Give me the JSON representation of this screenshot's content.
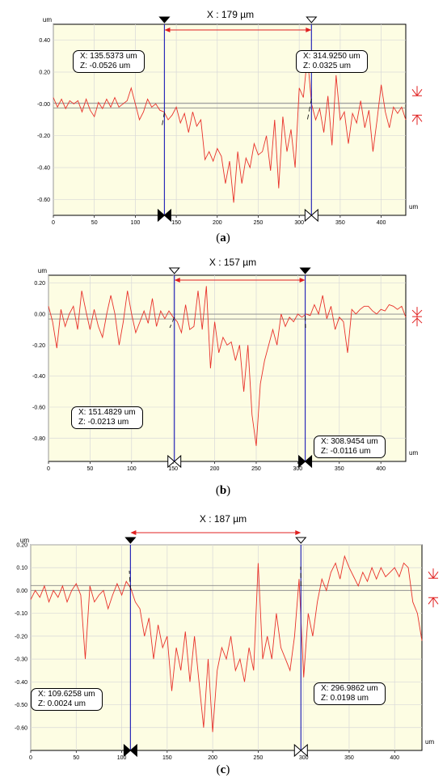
{
  "chart_data": [
    {
      "type": "line",
      "label": "(a)",
      "caption_letter": "a",
      "measure_label": "X : 179 µm",
      "y_unit": "um",
      "x_unit": "um",
      "xlim": [
        0,
        430
      ],
      "ylim": [
        -0.7,
        0.5
      ],
      "x_ticks": [
        0,
        50,
        100,
        150,
        200,
        250,
        300,
        350,
        400
      ],
      "y_ticks": [
        "0.40",
        "0.20",
        "-0.00",
        "-0.20",
        "-0.40",
        "-0.60"
      ],
      "y_tick_values": [
        0.4,
        0.2,
        0.0,
        -0.2,
        -0.4,
        -0.6
      ],
      "cursors": [
        {
          "x": 135.5373,
          "z": -0.0526,
          "x_text": "X: 135.5373 um",
          "z_text": "Z: -0.0526 um"
        },
        {
          "x": 314.925,
          "z": 0.0325,
          "x_text": "X: 314.9250 um",
          "z_text": "Z: 0.0325 um"
        }
      ],
      "series": [
        {
          "x": [
            0,
            5,
            10,
            15,
            20,
            25,
            30,
            35,
            40,
            45,
            50,
            55,
            60,
            65,
            70,
            75,
            80,
            85,
            90,
            95,
            100,
            105,
            110,
            115,
            120,
            125,
            130,
            135,
            140,
            145,
            150,
            155,
            160,
            165,
            170,
            175,
            180,
            185,
            190,
            195,
            200,
            205,
            210,
            215,
            220,
            225,
            230,
            235,
            240,
            245,
            250,
            255,
            260,
            265,
            270,
            275,
            280,
            285,
            290,
            295,
            300,
            305,
            310,
            315,
            320,
            325,
            330,
            335,
            340,
            345,
            350,
            355,
            360,
            365,
            370,
            375,
            380,
            385,
            390,
            395,
            400,
            405,
            410,
            415,
            420,
            425,
            430
          ],
          "y": [
            0.04,
            -0.02,
            0.03,
            -0.03,
            0.02,
            0.0,
            0.02,
            -0.05,
            0.03,
            -0.04,
            -0.08,
            0.01,
            -0.03,
            0.03,
            -0.02,
            0.04,
            -0.02,
            0.0,
            0.02,
            0.1,
            0.0,
            -0.1,
            -0.05,
            0.03,
            -0.02,
            0.0,
            -0.04,
            -0.05,
            -0.1,
            -0.07,
            -0.02,
            -0.12,
            -0.06,
            -0.18,
            -0.05,
            -0.14,
            -0.1,
            -0.35,
            -0.3,
            -0.36,
            -0.28,
            -0.33,
            -0.5,
            -0.36,
            -0.62,
            -0.3,
            -0.5,
            -0.34,
            -0.4,
            -0.25,
            -0.32,
            -0.3,
            -0.2,
            -0.42,
            -0.1,
            -0.53,
            -0.08,
            -0.3,
            -0.16,
            -0.4,
            0.1,
            0.04,
            0.3,
            0.0,
            -0.1,
            -0.03,
            -0.18,
            0.05,
            -0.26,
            0.18,
            -0.1,
            -0.05,
            -0.25,
            -0.06,
            -0.12,
            0.02,
            -0.15,
            -0.04,
            -0.3,
            -0.1,
            0.12,
            -0.05,
            -0.15,
            -0.02,
            -0.06,
            -0.02,
            -0.1
          ]
        }
      ]
    },
    {
      "type": "line",
      "label": "(b)",
      "caption_letter": "b",
      "measure_label": "X : 157 µm",
      "y_unit": "um",
      "x_unit": "um",
      "xlim": [
        0,
        430
      ],
      "ylim": [
        -0.95,
        0.25
      ],
      "x_ticks": [
        0,
        50,
        100,
        150,
        200,
        250,
        300,
        350,
        400
      ],
      "y_ticks": [
        "0.20",
        "0.00",
        "-0.20",
        "-0.40",
        "-0.60",
        "-0.80"
      ],
      "y_tick_values": [
        0.2,
        0.0,
        -0.2,
        -0.4,
        -0.6,
        -0.8
      ],
      "cursors": [
        {
          "x": 151.4829,
          "z": -0.0213,
          "x_text": "X: 151.4829 um",
          "z_text": "Z: -0.0213 um"
        },
        {
          "x": 308.9454,
          "z": -0.0116,
          "x_text": "X: 308.9454 um",
          "z_text": "Z: -0.0116 um"
        }
      ],
      "series": [
        {
          "x": [
            0,
            5,
            10,
            15,
            20,
            25,
            30,
            35,
            40,
            45,
            50,
            55,
            60,
            65,
            70,
            75,
            80,
            85,
            90,
            95,
            100,
            105,
            110,
            115,
            120,
            125,
            130,
            135,
            140,
            145,
            150,
            155,
            160,
            165,
            170,
            175,
            180,
            185,
            190,
            195,
            200,
            205,
            210,
            215,
            220,
            225,
            230,
            235,
            240,
            245,
            250,
            255,
            260,
            265,
            270,
            275,
            280,
            285,
            290,
            295,
            300,
            305,
            310,
            315,
            320,
            325,
            330,
            335,
            340,
            345,
            350,
            355,
            360,
            365,
            370,
            375,
            380,
            385,
            390,
            395,
            400,
            405,
            410,
            415,
            420,
            425,
            430
          ],
          "y": [
            0.05,
            -0.05,
            -0.22,
            0.03,
            -0.08,
            0.0,
            0.05,
            -0.1,
            0.15,
            0.02,
            -0.1,
            0.03,
            -0.08,
            -0.15,
            0.0,
            0.12,
            0.0,
            -0.2,
            -0.05,
            0.15,
            0.0,
            -0.12,
            -0.05,
            0.02,
            -0.06,
            0.1,
            -0.08,
            0.02,
            -0.03,
            0.02,
            -0.02,
            -0.05,
            -0.12,
            0.06,
            -0.1,
            -0.08,
            0.15,
            -0.1,
            0.18,
            -0.35,
            -0.05,
            -0.25,
            -0.15,
            -0.2,
            -0.18,
            -0.3,
            -0.2,
            -0.5,
            -0.2,
            -0.65,
            -0.85,
            -0.45,
            -0.3,
            -0.2,
            -0.1,
            -0.2,
            0.0,
            -0.08,
            -0.02,
            -0.05,
            0.0,
            -0.02,
            0.0,
            -0.01,
            0.06,
            0.0,
            0.12,
            -0.03,
            0.05,
            -0.1,
            -0.02,
            -0.05,
            -0.25,
            0.03,
            0.0,
            0.03,
            0.05,
            0.05,
            0.02,
            0.0,
            0.03,
            0.02,
            0.06,
            0.05,
            0.03,
            0.05,
            -0.02
          ]
        }
      ]
    },
    {
      "type": "line",
      "label": "(c)",
      "caption_letter": "c",
      "measure_label": "X : 187 µm",
      "y_unit": "um",
      "x_unit": "um",
      "xlim": [
        0,
        430
      ],
      "ylim": [
        -0.7,
        0.2
      ],
      "x_ticks": [
        0,
        50,
        100,
        150,
        200,
        250,
        300,
        350,
        400
      ],
      "y_ticks": [
        "0.20",
        "0.10",
        "0.00",
        "-0.10",
        "-0.20",
        "-0.30",
        "-0.40",
        "-0.50",
        "-0.60"
      ],
      "y_tick_values": [
        0.2,
        0.1,
        0.0,
        -0.1,
        -0.2,
        -0.3,
        -0.4,
        -0.5,
        -0.6
      ],
      "cursors": [
        {
          "x": 109.6258,
          "z": 0.0024,
          "x_text": "X: 109.6258 um",
          "z_text": "Z: 0.0024 um"
        },
        {
          "x": 296.9862,
          "z": 0.0198,
          "x_text": "X: 296.9862 um",
          "z_text": "Z: 0.0198 um"
        }
      ],
      "series": [
        {
          "x": [
            0,
            5,
            10,
            15,
            20,
            25,
            30,
            35,
            40,
            45,
            50,
            55,
            60,
            65,
            70,
            75,
            80,
            85,
            90,
            95,
            100,
            105,
            110,
            115,
            120,
            125,
            130,
            135,
            140,
            145,
            150,
            155,
            160,
            165,
            170,
            175,
            180,
            185,
            190,
            195,
            200,
            205,
            210,
            215,
            220,
            225,
            230,
            235,
            240,
            245,
            250,
            255,
            260,
            265,
            270,
            275,
            280,
            285,
            290,
            295,
            300,
            305,
            310,
            315,
            320,
            325,
            330,
            335,
            340,
            345,
            350,
            355,
            360,
            365,
            370,
            375,
            380,
            385,
            390,
            395,
            400,
            405,
            410,
            415,
            420,
            425,
            430
          ],
          "y": [
            -0.04,
            0.0,
            -0.03,
            0.02,
            -0.05,
            0.0,
            -0.03,
            0.02,
            -0.05,
            0.0,
            0.03,
            -0.02,
            -0.3,
            0.02,
            -0.05,
            -0.02,
            0.0,
            -0.08,
            -0.02,
            0.03,
            -0.02,
            0.04,
            0.01,
            -0.05,
            -0.08,
            -0.2,
            -0.12,
            -0.3,
            -0.15,
            -0.25,
            -0.2,
            -0.44,
            -0.25,
            -0.35,
            -0.18,
            -0.4,
            -0.2,
            -0.4,
            -0.6,
            -0.3,
            -0.62,
            -0.35,
            -0.25,
            -0.3,
            -0.2,
            -0.35,
            -0.3,
            -0.4,
            -0.25,
            -0.35,
            0.12,
            -0.3,
            -0.2,
            -0.3,
            -0.1,
            -0.25,
            -0.3,
            -0.35,
            -0.2,
            0.05,
            -0.38,
            -0.1,
            -0.2,
            -0.05,
            0.05,
            0.0,
            0.08,
            0.12,
            0.05,
            0.15,
            0.1,
            0.06,
            0.02,
            0.08,
            0.04,
            0.1,
            0.05,
            0.1,
            0.06,
            0.08,
            0.1,
            0.06,
            0.12,
            0.1,
            -0.05,
            -0.1,
            -0.22
          ]
        }
      ]
    }
  ]
}
